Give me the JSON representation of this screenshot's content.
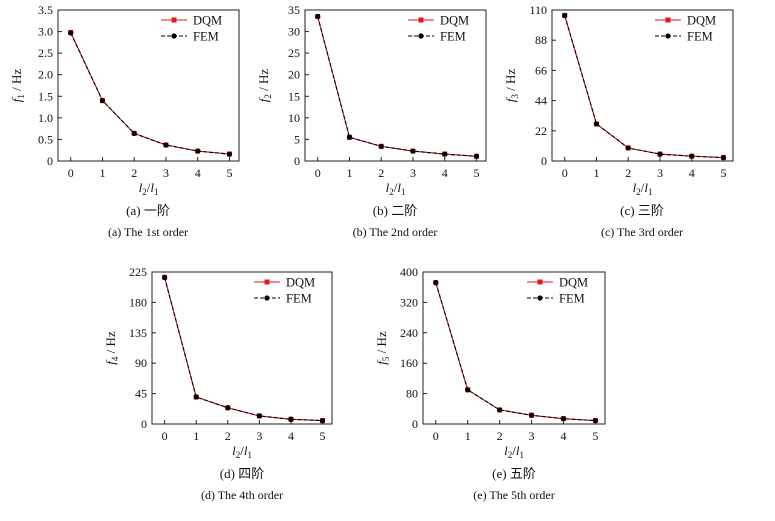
{
  "figure": {
    "series_colors": {
      "dqm": "#e8141e",
      "fem": "#000000"
    },
    "y_axis_unit": "Hz"
  },
  "chart_data": [
    {
      "type": "line",
      "x": [
        0,
        1,
        2,
        3,
        4,
        5
      ],
      "series": [
        {
          "name": "DQM",
          "values": [
            2.98,
            1.4,
            0.64,
            0.37,
            0.23,
            0.16
          ]
        },
        {
          "name": "FEM",
          "values": [
            2.97,
            1.4,
            0.64,
            0.37,
            0.23,
            0.16
          ]
        }
      ],
      "ylim": [
        0,
        3.5
      ],
      "yticks": [
        "0",
        "0.5",
        "1.0",
        "1.5",
        "2.0",
        "2.5",
        "3.0",
        "3.5"
      ],
      "xticks": [
        "0",
        "1",
        "2",
        "3",
        "4",
        "5"
      ],
      "ylabel_sub": "1",
      "caption_cn": "(a) 一阶",
      "caption_en": "(a) The 1st order",
      "legend": "top-right",
      "grid": false
    },
    {
      "type": "line",
      "x": [
        0,
        1,
        2,
        3,
        4,
        5
      ],
      "series": [
        {
          "name": "DQM",
          "values": [
            33.5,
            5.5,
            3.4,
            2.3,
            1.6,
            1.1
          ]
        },
        {
          "name": "FEM",
          "values": [
            33.5,
            5.5,
            3.4,
            2.3,
            1.6,
            1.1
          ]
        }
      ],
      "ylim": [
        0,
        35
      ],
      "yticks": [
        "0",
        "5",
        "10",
        "15",
        "20",
        "25",
        "30",
        "35"
      ],
      "xticks": [
        "0",
        "1",
        "2",
        "3",
        "4",
        "5"
      ],
      "ylabel_sub": "2",
      "caption_cn": "(b) 二阶",
      "caption_en": "(b) The 2nd order",
      "legend": "top-right",
      "grid": false
    },
    {
      "type": "line",
      "x": [
        0,
        1,
        2,
        3,
        4,
        5
      ],
      "series": [
        {
          "name": "DQM",
          "values": [
            106,
            27,
            9.5,
            5.0,
            3.5,
            2.5
          ]
        },
        {
          "name": "FEM",
          "values": [
            106,
            27,
            9.5,
            5.0,
            3.5,
            2.5
          ]
        }
      ],
      "ylim": [
        0,
        110
      ],
      "yticks": [
        "0",
        "22",
        "44",
        "66",
        "88",
        "110"
      ],
      "xticks": [
        "0",
        "1",
        "2",
        "3",
        "4",
        "5"
      ],
      "ylabel_sub": "3",
      "caption_cn": "(c) 三阶",
      "caption_en": "(c) The 3rd order",
      "legend": "top-right",
      "grid": false
    },
    {
      "type": "line",
      "x": [
        0,
        1,
        2,
        3,
        4,
        5
      ],
      "series": [
        {
          "name": "DQM",
          "values": [
            217,
            40,
            24,
            12,
            7,
            5
          ]
        },
        {
          "name": "FEM",
          "values": [
            217,
            40,
            24,
            12,
            7,
            5
          ]
        }
      ],
      "ylim": [
        0,
        225
      ],
      "yticks": [
        "0",
        "45",
        "90",
        "135",
        "180",
        "225"
      ],
      "xticks": [
        "0",
        "1",
        "2",
        "3",
        "4",
        "5"
      ],
      "ylabel_sub": "4",
      "caption_cn": "(d) 四阶",
      "caption_en": "(d) The 4th order",
      "legend": "top-right",
      "grid": false
    },
    {
      "type": "line",
      "x": [
        0,
        1,
        2,
        3,
        4,
        5
      ],
      "series": [
        {
          "name": "DQM",
          "values": [
            372,
            90,
            37,
            23,
            14,
            9
          ]
        },
        {
          "name": "FEM",
          "values": [
            372,
            90,
            37,
            23,
            14,
            9
          ]
        }
      ],
      "ylim": [
        0,
        400
      ],
      "yticks": [
        "0",
        "80",
        "160",
        "240",
        "320",
        "400"
      ],
      "xticks": [
        "0",
        "1",
        "2",
        "3",
        "4",
        "5"
      ],
      "ylabel_sub": "5",
      "caption_cn": "(e) 五阶",
      "caption_en": "(e) The 5th order",
      "legend": "top-right",
      "grid": false
    }
  ]
}
